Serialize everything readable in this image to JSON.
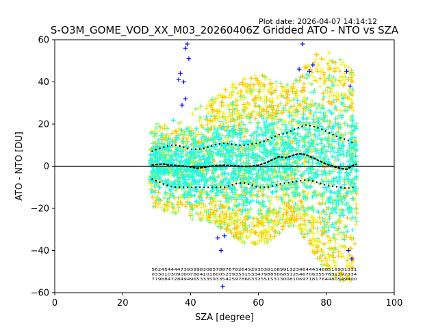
{
  "chart_data": {
    "type": "scatter",
    "title": "S-O3M_GOME_VOD_XX_M03_20260406Z Gridded ATO - NTO vs SZA",
    "plot_date": "Plot date: 2026-04-07 14:14:12",
    "xlabel": "SZA [degree]",
    "ylabel": "ATO - NTO [DU]",
    "xlim": [
      0,
      100
    ],
    "ylim": [
      -60,
      60
    ],
    "xticks": [
      "0",
      "20",
      "40",
      "60",
      "80",
      "100"
    ],
    "yticks": [
      "60",
      "40",
      "20",
      "0",
      "−20",
      "−40",
      "−60"
    ],
    "xtick_values": [
      0,
      20,
      40,
      60,
      80,
      100
    ],
    "ytick_values": [
      60,
      40,
      20,
      0,
      -20,
      -40,
      -60
    ],
    "zero_line": 0,
    "grid": false,
    "colors": {
      "blue": "#0000ff",
      "cyan": "#1ff8e6",
      "green": "#7df47a",
      "yellow": "#f0f22a",
      "orange": "#ffc400",
      "black": "#000000"
    },
    "median": {
      "x": [
        28.5,
        30,
        32,
        34,
        36,
        38,
        40,
        42,
        44,
        46,
        48,
        50,
        52,
        54,
        56,
        58,
        60,
        62,
        64,
        66,
        68,
        70,
        72,
        74,
        76,
        78,
        80,
        82,
        84,
        86,
        88,
        89
      ],
      "y": [
        0.5,
        0.8,
        1.0,
        0.5,
        0.2,
        0,
        -0.3,
        -1.0,
        -0.5,
        0,
        0.3,
        0.5,
        0.2,
        0,
        -0.2,
        0,
        0.5,
        1.5,
        3.0,
        4.5,
        4.0,
        5.0,
        6.0,
        5.5,
        4.0,
        2.5,
        1.0,
        0,
        -1.0,
        -1.5,
        0.5,
        1.0
      ]
    },
    "upper_quantile": {
      "x": [
        28.5,
        30,
        32,
        34,
        36,
        38,
        40,
        42,
        44,
        46,
        48,
        50,
        52,
        54,
        56,
        58,
        60,
        62,
        64,
        66,
        68,
        70,
        72,
        74,
        76,
        78,
        80,
        82,
        84,
        86,
        88
      ],
      "y": [
        7,
        8,
        9,
        10,
        10,
        9,
        8,
        8,
        8.5,
        9.5,
        10.5,
        11,
        10.5,
        10,
        10,
        10.5,
        11,
        12,
        13.5,
        15,
        15.5,
        17,
        18.5,
        19.5,
        19,
        18,
        16.5,
        15,
        13.5,
        12.5,
        11
      ]
    },
    "lower_quantile": {
      "x": [
        28.5,
        30,
        32,
        34,
        36,
        38,
        40,
        42,
        44,
        46,
        48,
        50,
        52,
        54,
        56,
        58,
        60,
        62,
        64,
        66,
        68,
        70,
        72,
        74,
        76,
        78,
        80,
        82,
        84,
        86,
        88
      ],
      "y": [
        -6,
        -7,
        -8.5,
        -9.5,
        -10,
        -10,
        -10,
        -10,
        -10,
        -10,
        -10,
        -10,
        -9,
        -8,
        -8,
        -9,
        -10,
        -10,
        -9.5,
        -8.5,
        -8,
        -7.5,
        -7,
        -6.5,
        -7,
        -8,
        -9,
        -9.5,
        -10,
        -10.5,
        -10
      ]
    },
    "point_cloud": {
      "sza_range": [
        28,
        89
      ],
      "core_band": {
        "x": [
          28,
          30,
          35,
          40,
          45,
          50,
          55,
          60,
          65,
          70,
          72,
          75,
          78,
          80,
          82,
          85,
          88,
          89
        ],
        "upper": [
          18,
          20,
          22,
          26,
          30,
          36,
          42,
          44,
          40,
          38,
          44,
          50,
          55,
          56,
          52,
          50,
          45,
          20
        ],
        "lower": [
          -18,
          -20,
          -22,
          -25,
          -26,
          -30,
          -36,
          -38,
          -34,
          -28,
          -30,
          -38,
          -45,
          -50,
          -52,
          -55,
          -55,
          -25
        ]
      },
      "blue_outliers": [
        [
          37,
          44
        ],
        [
          38,
          40
        ],
        [
          38.5,
          56
        ],
        [
          39,
          58
        ],
        [
          39.5,
          51
        ],
        [
          37.5,
          29
        ],
        [
          38.5,
          32
        ],
        [
          36.5,
          41
        ],
        [
          48,
          -34
        ],
        [
          49,
          -40
        ],
        [
          49.5,
          -57
        ],
        [
          50,
          -33
        ],
        [
          72,
          46
        ],
        [
          73,
          58
        ],
        [
          75,
          45
        ],
        [
          76,
          48
        ],
        [
          86,
          45
        ],
        [
          87,
          38
        ],
        [
          86.5,
          -40
        ],
        [
          87.5,
          -44
        ]
      ]
    },
    "bin_counts": {
      "rows": [
        "5624544447393998308578876782649293038108991323464443488519931331",
        "0330103090007804101600523935315334798850685125467063557631292334",
        "7798847284949653335933542597866332551531300810697181764480549400"
      ]
    }
  }
}
